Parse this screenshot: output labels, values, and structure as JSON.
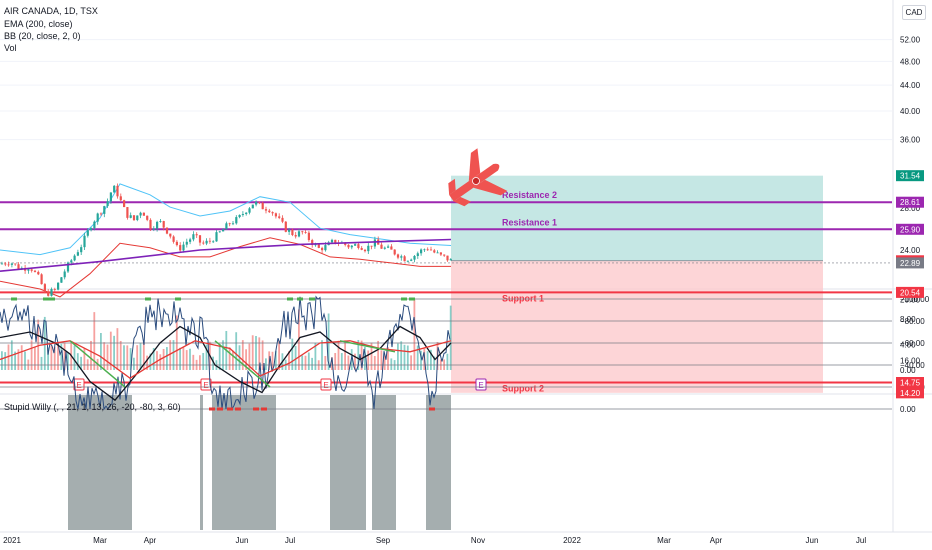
{
  "legend": {
    "title": "AIR CANADA, 1D, TSX",
    "ema": "EMA (200, close)",
    "bb": "BB (20, close, 2, 0)",
    "vol": "Vol",
    "oscillator": "Stupid Willy (, , 21, 1, 13, 26, -20, -80, 3, 60)"
  },
  "currency": "CAD",
  "colors": {
    "up": "#26a69a",
    "down": "#ef5350",
    "purple": "#9c27b0",
    "red": "#f23645",
    "ema": "#7e22b8",
    "bb_upper": "#4fc3f7",
    "bb_lower": "#e53935",
    "resistance_zone": "#b2dfdb",
    "support_zone": "#fccbcd",
    "osc_line": "#2b4c7e",
    "osc_black": "#131722",
    "osc_red": "#e53935",
    "osc_green": "#4caf50",
    "osc_shade": "#7f8c8d"
  },
  "chart_data": [
    {
      "type": "candlestick",
      "title": "AIR CANADA, 1D, TSX",
      "y_scale": "log",
      "ylim": [
        13.5,
        56
      ],
      "y_ticks": [
        "52.00",
        "48.00",
        "44.00",
        "40.00",
        "36.00",
        "28.00",
        "24.00",
        "20.00",
        "16.00"
      ],
      "x_ticks": [
        "2021",
        "Mar",
        "Apr",
        "Jun",
        "Jul",
        "Sep",
        "Nov",
        "2022",
        "Mar",
        "Apr",
        "Jun",
        "Jul"
      ],
      "series_path": [
        [
          0,
          22.8
        ],
        [
          10,
          23.0
        ],
        [
          20,
          22.4
        ],
        [
          30,
          22.6
        ],
        [
          40,
          21.5
        ],
        [
          45,
          20.4
        ],
        [
          55,
          20.7
        ],
        [
          63,
          22.0
        ],
        [
          72,
          23.2
        ],
        [
          82,
          24.5
        ],
        [
          92,
          26.5
        ],
        [
          100,
          27.6
        ],
        [
          108,
          28.8
        ],
        [
          113,
          30.3
        ],
        [
          118,
          29.4
        ],
        [
          126,
          27.4
        ],
        [
          134,
          26.8
        ],
        [
          142,
          27.9
        ],
        [
          150,
          26.1
        ],
        [
          160,
          26.6
        ],
        [
          170,
          25.4
        ],
        [
          178,
          24.0
        ],
        [
          186,
          24.7
        ],
        [
          194,
          25.3
        ],
        [
          202,
          24.5
        ],
        [
          210,
          24.8
        ],
        [
          220,
          25.6
        ],
        [
          230,
          26.5
        ],
        [
          238,
          26.9
        ],
        [
          246,
          27.8
        ],
        [
          254,
          28.6
        ],
        [
          262,
          28.1
        ],
        [
          270,
          27.9
        ],
        [
          278,
          26.9
        ],
        [
          286,
          25.9
        ],
        [
          294,
          25.4
        ],
        [
          302,
          25.6
        ],
        [
          310,
          24.9
        ],
        [
          318,
          24.1
        ],
        [
          326,
          24.3
        ],
        [
          334,
          24.8
        ],
        [
          342,
          24.6
        ],
        [
          350,
          24.3
        ],
        [
          358,
          24.5
        ],
        [
          366,
          24.1
        ],
        [
          374,
          24.7
        ],
        [
          382,
          24.2
        ],
        [
          390,
          24.0
        ],
        [
          398,
          23.6
        ],
        [
          406,
          23.2
        ],
        [
          414,
          23.5
        ],
        [
          422,
          24.0
        ],
        [
          428,
          24.2
        ],
        [
          434,
          23.8
        ],
        [
          440,
          23.5
        ],
        [
          446,
          23.3
        ],
        [
          451,
          23.07
        ]
      ],
      "ema": [
        [
          0,
          22.2
        ],
        [
          100,
          23.0
        ],
        [
          200,
          24.0
        ],
        [
          300,
          24.5
        ],
        [
          400,
          24.8
        ],
        [
          451,
          24.95
        ]
      ],
      "bb_upper": [
        [
          0,
          24.0
        ],
        [
          40,
          23.6
        ],
        [
          70,
          24.2
        ],
        [
          100,
          27.0
        ],
        [
          120,
          30.6
        ],
        [
          150,
          29.4
        ],
        [
          170,
          28.1
        ],
        [
          200,
          27.2
        ],
        [
          230,
          27.7
        ],
        [
          260,
          29.2
        ],
        [
          290,
          28.6
        ],
        [
          320,
          26.0
        ],
        [
          350,
          25.4
        ],
        [
          380,
          25.0
        ],
        [
          410,
          24.6
        ],
        [
          451,
          24.4
        ]
      ],
      "bb_lower": [
        [
          0,
          21.4
        ],
        [
          40,
          20.8
        ],
        [
          60,
          20.2
        ],
        [
          90,
          22.0
        ],
        [
          120,
          24.6
        ],
        [
          150,
          24.2
        ],
        [
          180,
          23.4
        ],
        [
          210,
          23.4
        ],
        [
          240,
          24.3
        ],
        [
          270,
          25.1
        ],
        [
          300,
          24.5
        ],
        [
          330,
          23.4
        ],
        [
          360,
          23.2
        ],
        [
          390,
          22.9
        ],
        [
          420,
          22.6
        ],
        [
          451,
          22.6
        ]
      ],
      "levels": [
        {
          "name": "Resistance 2",
          "value": 28.61,
          "label": "28.61",
          "color": "#9c27b0"
        },
        {
          "name": "Resistance 1",
          "value": 25.9,
          "label": "25.90",
          "color": "#9c27b0"
        },
        {
          "name": "Support 1",
          "value": 20.54,
          "label": "20.54",
          "color": "#f23645"
        },
        {
          "name": "Support 2",
          "value": 14.75,
          "label": "14.75",
          "color": "#f23645"
        }
      ],
      "position": {
        "target": 31.54,
        "entry": 23.07,
        "stop": 14.2,
        "target_label": "31.54",
        "entry_label": "23.07",
        "stop_label": "14.20"
      },
      "last_price": {
        "value": 22.89,
        "label": "22.89"
      },
      "earnings_markers": [
        3,
        4,
        4,
        4
      ],
      "earnings_marker_label": "E"
    },
    {
      "type": "bar",
      "title": "Vol",
      "ylim": [
        0,
        14
      ],
      "y_ticks": [
        "12.00",
        "8.00",
        "4.00",
        "0.00"
      ]
    },
    {
      "type": "line",
      "title": "Stupid Willy (, , 21, 1, 13, 26, -20, -80, 3, 60)",
      "ylim": [
        -105,
        2
      ],
      "y_ticks": [
        "0.00",
        "−20.00",
        "−40.00",
        "−60.00",
        "−80.00",
        "−100.00"
      ],
      "hlines": [
        0,
        -20,
        -40,
        -60,
        -80,
        -100
      ],
      "shaded_ranges": [
        [
          68,
          132
        ],
        [
          212,
          276
        ],
        [
          330,
          366
        ],
        [
          372,
          396
        ],
        [
          426,
          451
        ]
      ],
      "thin_shade": [
        200,
        203
      ]
    }
  ]
}
